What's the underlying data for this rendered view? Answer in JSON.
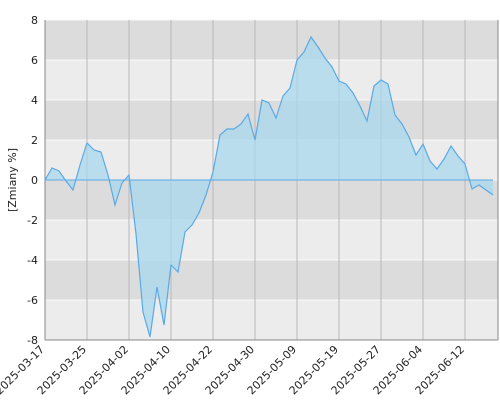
{
  "chart_data": {
    "type": "area",
    "y_label": "[Zmiany %]",
    "categories": [
      "2025-03-17",
      null,
      null,
      null,
      null,
      null,
      "2025-03-25",
      null,
      null,
      null,
      null,
      null,
      "2025-04-02",
      null,
      null,
      null,
      null,
      null,
      "2025-04-10",
      null,
      null,
      null,
      null,
      null,
      "2025-04-22",
      null,
      null,
      null,
      null,
      null,
      "2025-04-30",
      null,
      null,
      null,
      null,
      null,
      "2025-05-09",
      null,
      null,
      null,
      null,
      null,
      "2025-05-19",
      null,
      null,
      null,
      null,
      null,
      "2025-05-27",
      null,
      null,
      null,
      null,
      null,
      "2025-06-04",
      null,
      null,
      null,
      null,
      null,
      "2025-06-12",
      null,
      null,
      null,
      null
    ],
    "values": [
      0,
      0.6,
      0.45,
      -0.05,
      -0.5,
      0.75,
      1.85,
      1.5,
      1.4,
      0.25,
      -1.25,
      -0.15,
      0.25,
      -2.7,
      -6.6,
      -7.85,
      -5.35,
      -7.25,
      -4.25,
      -4.6,
      -2.6,
      -2.25,
      -1.65,
      -0.75,
      0.4,
      2.25,
      2.55,
      2.55,
      2.8,
      3.3,
      2.0,
      4.0,
      3.85,
      3.1,
      4.2,
      4.6,
      6.0,
      6.4,
      7.15,
      6.65,
      6.1,
      5.65,
      4.95,
      4.8,
      4.35,
      3.7,
      2.95,
      4.7,
      5.0,
      4.8,
      3.25,
      2.8,
      2.15,
      1.25,
      1.8,
      0.95,
      0.55,
      1.05,
      1.7,
      1.2,
      0.8,
      -0.45,
      -0.25,
      -0.5,
      -0.75
    ],
    "color": "#5aa9e6",
    "fill": "#a8d8ec",
    "ylim": [
      -8,
      8
    ],
    "yticks": [
      -8,
      -6,
      -4,
      -2,
      0,
      2,
      4,
      6,
      8
    ],
    "grid": true
  }
}
